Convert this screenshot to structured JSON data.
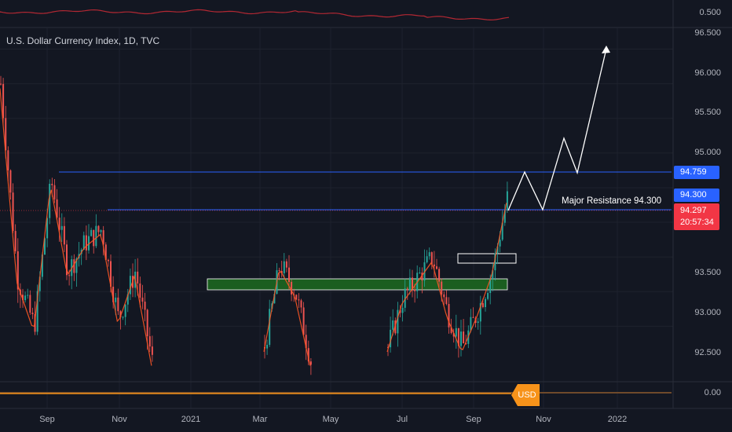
{
  "header": {
    "title": "U.S. Dollar Currency Index, 1D, TVC"
  },
  "price_axis": {
    "top_indicator_label": "0.500",
    "labels": [
      "96.500",
      "96.000",
      "95.500",
      "95.000",
      "93.500",
      "93.000",
      "92.500"
    ],
    "bottom_indicator_label": "0.00"
  },
  "badges": {
    "level_1": "94.759",
    "level_2": "94.300",
    "last_price": "94.297",
    "countdown": "20:57:34",
    "level_1_color": "#2962ff",
    "level_2_color": "#2962ff",
    "last_price_color": "#f23645"
  },
  "annotation": {
    "text": "Major Resistance 94.300"
  },
  "usd_tag": "USD",
  "time_axis": {
    "labels": [
      "Sep",
      "Nov",
      "2021",
      "Mar",
      "May",
      "Jul",
      "Sep",
      "Nov",
      "2022"
    ]
  },
  "colors": {
    "background": "#131722",
    "up": "#26a69a",
    "down": "#ef5350",
    "ma": "#ff9800",
    "zone_green": "#1b5e20",
    "resistance_line": "#2962ff"
  },
  "chart_data": {
    "type": "candlestick",
    "symbol": "U.S. Dollar Currency Index",
    "interval": "1D",
    "source": "TVC",
    "y_axis_range": [
      91.7,
      96.8
    ],
    "horizontal_levels": [
      94.759,
      94.3
    ],
    "last_price": 94.297,
    "demand_zone": {
      "top": 93.4,
      "bottom": 93.28
    },
    "breakout_box": {
      "top": 93.75,
      "bottom": 93.65
    },
    "projection_path": [
      94.3,
      94.75,
      94.3,
      95.2,
      94.8,
      96.3
    ],
    "x_ticks": [
      "Sep",
      "Nov",
      "2021",
      "Mar",
      "May",
      "Jul",
      "Sep",
      "Nov",
      "2022"
    ],
    "price_segments": [
      {
        "from": "Aug 2020",
        "to": "Dec 2020",
        "path": [
          96.0,
          93.2,
          92.5,
          94.6,
          93.3,
          93.7,
          93.9,
          92.6,
          93.3,
          92.0
        ]
      },
      {
        "from": "Mar 2021",
        "to": "Apr 2021",
        "path": [
          92.2,
          93.4,
          93.0,
          92.0
        ]
      },
      {
        "from": "Jun 2021",
        "to": "Oct 2021",
        "path": [
          92.2,
          92.9,
          93.2,
          93.5,
          92.7,
          92.2,
          92.7,
          93.3,
          94.35
        ]
      }
    ]
  }
}
